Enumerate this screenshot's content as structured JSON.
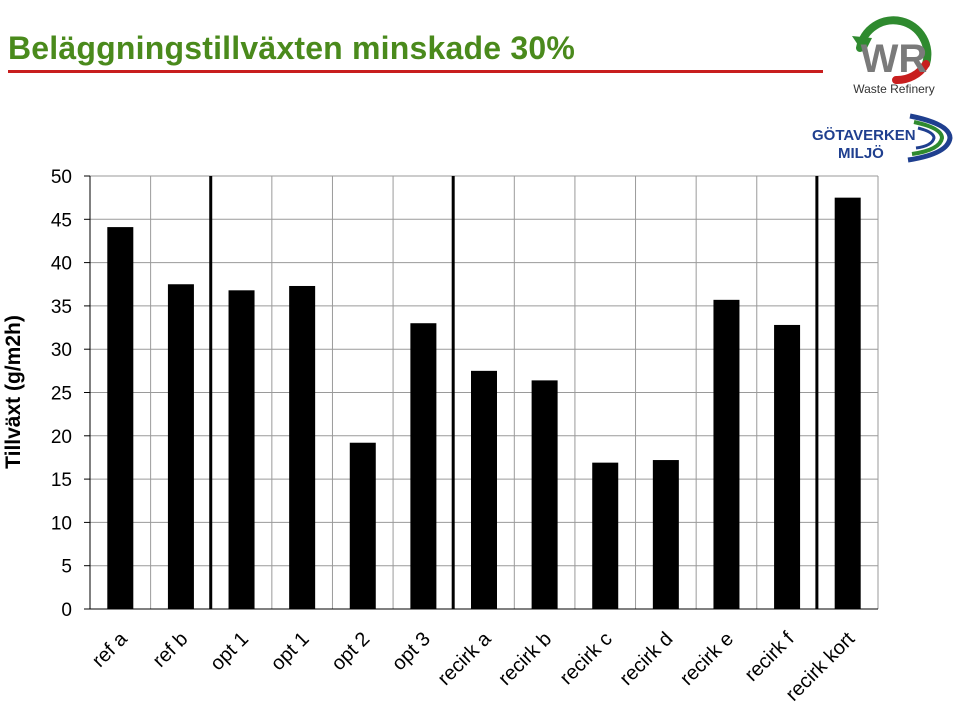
{
  "slide": {
    "title": "Beläggningstillväxten minskade 30%",
    "colors": {
      "title": "#4a8a1c",
      "rule": "#c81e1e",
      "bars": "#000000"
    }
  },
  "logos": {
    "wr": {
      "letters": "WR",
      "caption": "Waste Refinery"
    },
    "gv": {
      "line1": "GÖTAVERKEN",
      "line2": "MILJÖ"
    }
  },
  "chart_data": {
    "type": "bar",
    "ylabel": "Tillväxt (g/m2h)",
    "xlabel": "",
    "ylim": [
      0,
      50
    ],
    "yticks": [
      0,
      5,
      10,
      15,
      20,
      25,
      30,
      35,
      40,
      45,
      50
    ],
    "grid": true,
    "categories": [
      "ref a",
      "ref b",
      "opt 1",
      "opt 1",
      "opt 2",
      "opt 3",
      "recirk a",
      "recirk b",
      "recirk c",
      "recirk d",
      "recirk e",
      "recirk f",
      "recirk kort"
    ],
    "values": [
      44.1,
      37.5,
      36.8,
      37.3,
      19.2,
      33.0,
      27.5,
      26.4,
      16.9,
      17.2,
      35.7,
      32.8,
      47.5
    ],
    "group_separators_after": [
      2,
      6,
      12
    ]
  }
}
